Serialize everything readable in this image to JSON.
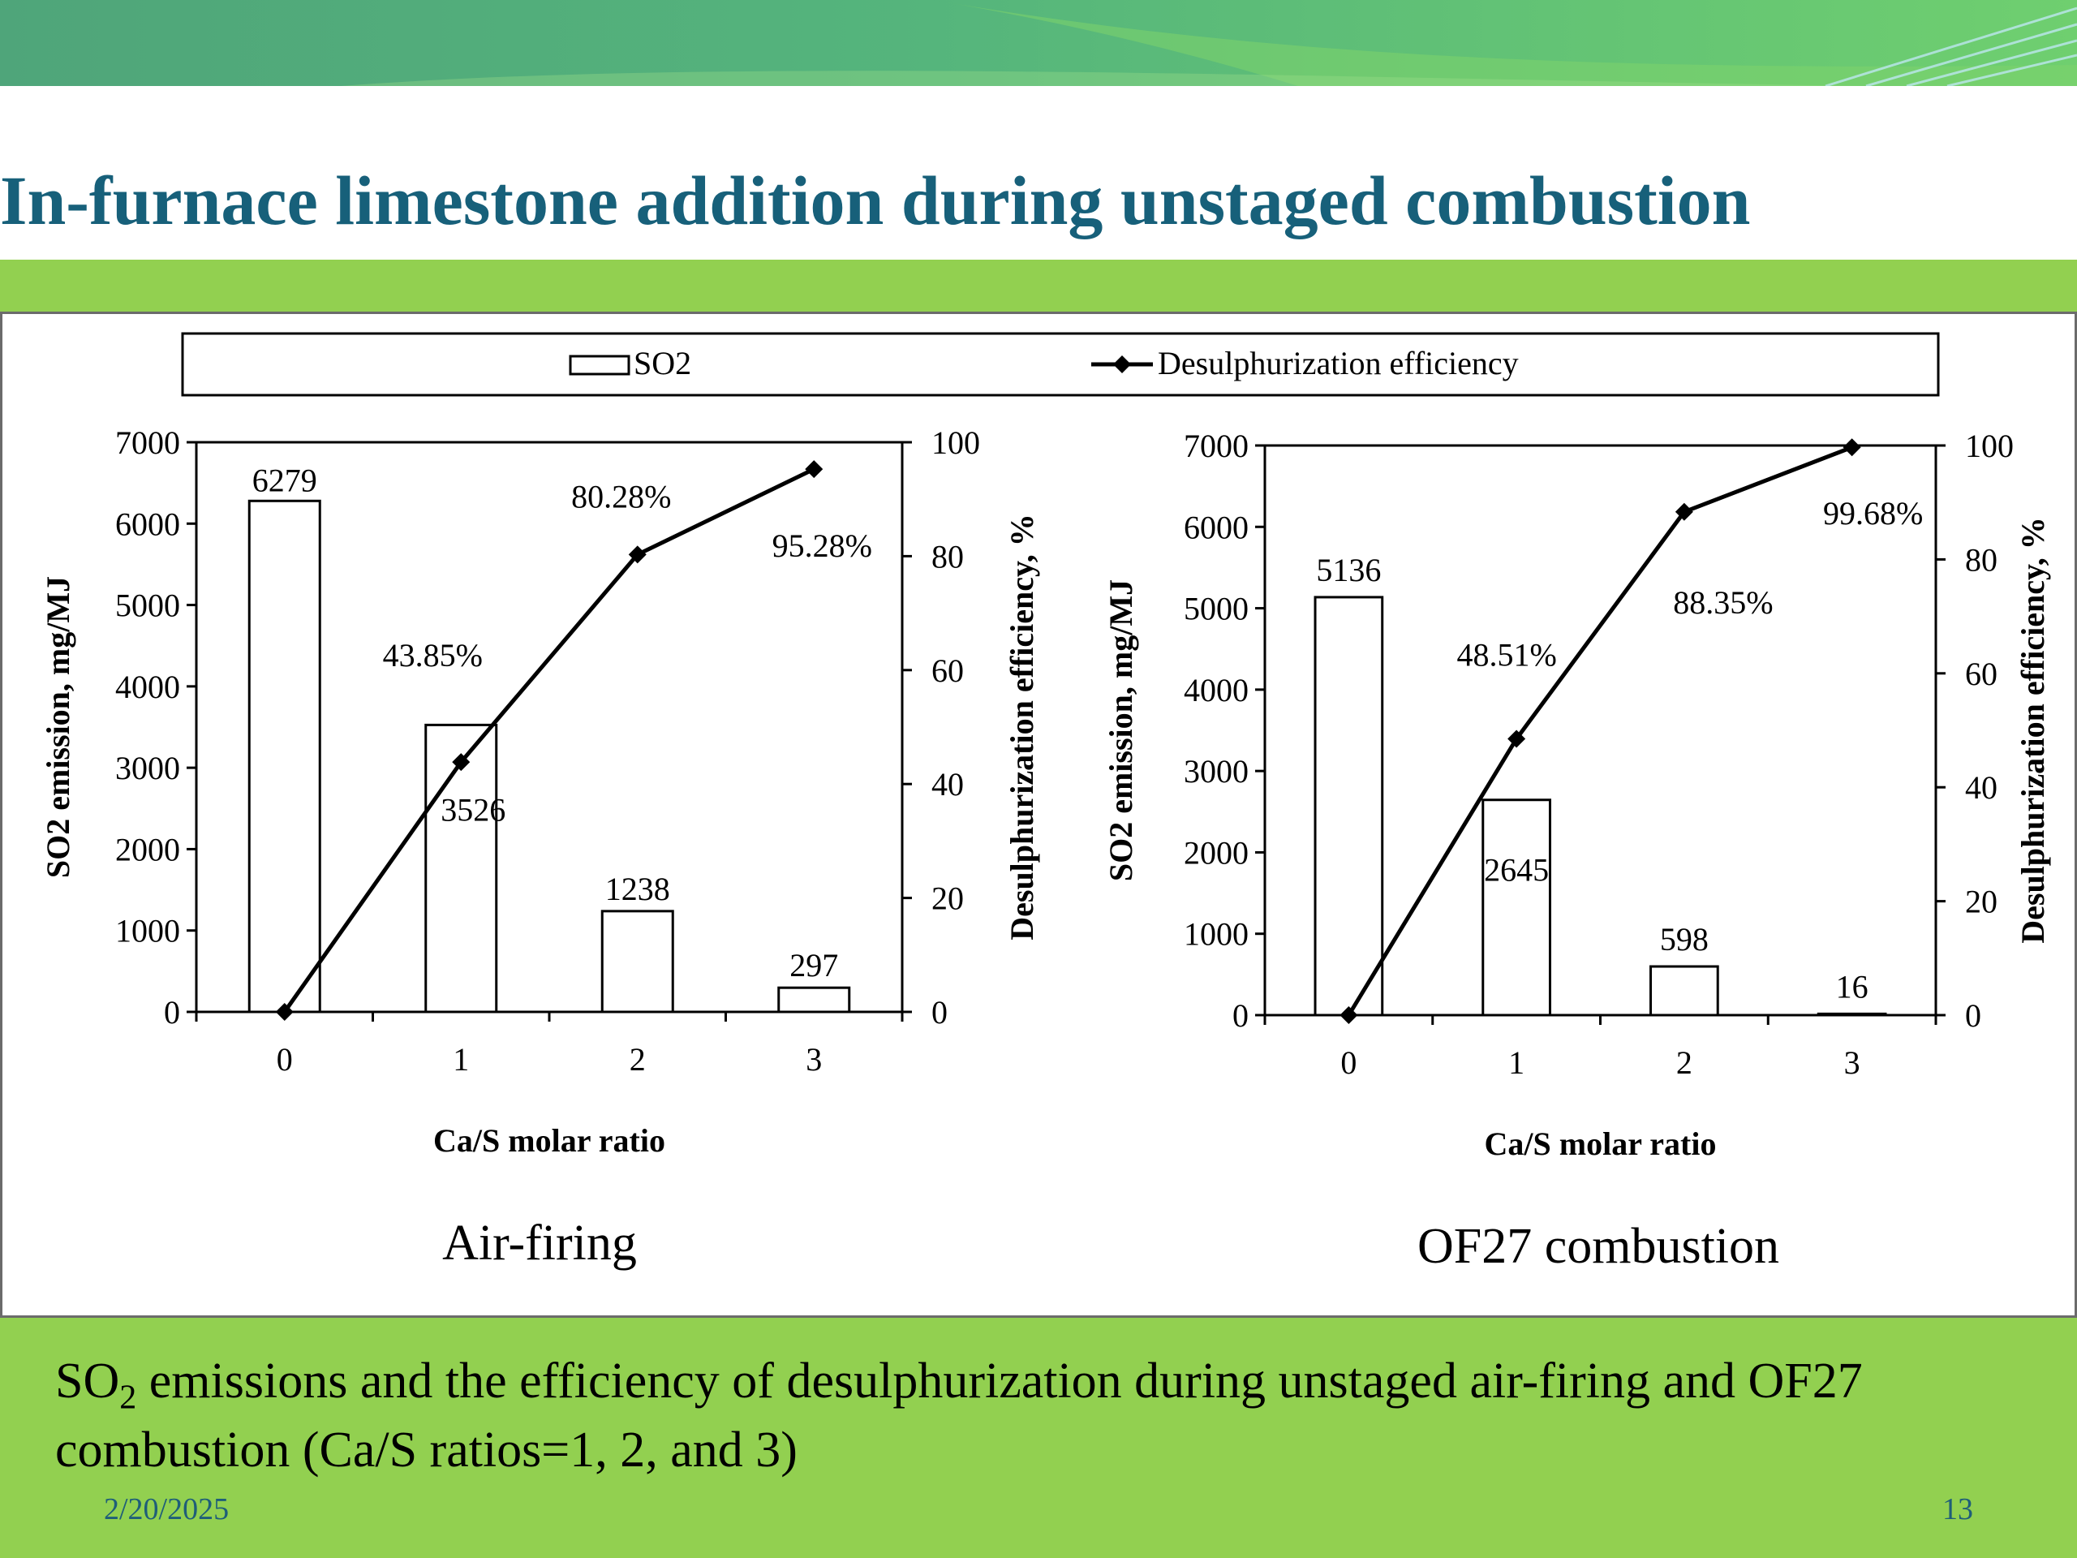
{
  "slide": {
    "title": "In-furnace limestone addition during unstaged combustion",
    "caption": {
      "pre": "SO",
      "sub": "2",
      "post": " emissions and the efficiency of desulphurization during unstaged air-firing and OF27 combustion (Ca/S ratios=1, 2, and 3)"
    },
    "footer_date": "2/20/2025",
    "page_number": "13"
  },
  "legend": {
    "entries": [
      "SO2",
      "Desulphurization efficiency"
    ],
    "placement": "top",
    "bar_fill": "#ffffff",
    "line_color": "#000000"
  },
  "colors": {
    "title": "#17607a",
    "band": "#92d050",
    "footer_text": "#1f5e78"
  },
  "chart_data": [
    {
      "type": "bar",
      "subtitle": "Air-firing",
      "categories": [
        "0",
        "1",
        "2",
        "3"
      ],
      "xlabel": "Ca/S molar ratio",
      "ylabel": "SO2 emission,  mg/MJ",
      "y2label": "Desulphurization efficiency,  %",
      "ylim": [
        0,
        7000
      ],
      "y2lim": [
        0,
        100
      ],
      "yticks": [
        "0",
        "1000",
        "2000",
        "3000",
        "4000",
        "5000",
        "6000",
        "7000"
      ],
      "y2ticks": [
        "0",
        "20",
        "40",
        "60",
        "80",
        "100"
      ],
      "series": [
        {
          "name": "SO2",
          "kind": "bar",
          "values": [
            6279,
            3526,
            1238,
            297
          ],
          "labels": [
            "6279",
            "3526",
            "1238",
            "297"
          ]
        },
        {
          "name": "Desulphurization efficiency",
          "kind": "line",
          "axis": "right",
          "values": [
            0,
            43.85,
            80.28,
            95.28
          ],
          "labels": [
            "",
            "43.85%",
            "80.28%",
            "95.28%"
          ]
        }
      ]
    },
    {
      "type": "bar",
      "subtitle": "OF27 combustion",
      "categories": [
        "0",
        "1",
        "2",
        "3"
      ],
      "xlabel": "Ca/S molar ratio",
      "ylabel": "SO2 emission,  mg/MJ",
      "y2label": "Desulphurization efficiency,  %",
      "ylim": [
        0,
        7000
      ],
      "y2lim": [
        0,
        100
      ],
      "yticks": [
        "0",
        "1000",
        "2000",
        "3000",
        "4000",
        "5000",
        "6000",
        "7000"
      ],
      "y2ticks": [
        "0",
        "20",
        "40",
        "60",
        "80",
        "100"
      ],
      "series": [
        {
          "name": "SO2",
          "kind": "bar",
          "values": [
            5136,
            2645,
            598,
            16
          ],
          "labels": [
            "5136",
            "2645",
            "598",
            "16"
          ]
        },
        {
          "name": "Desulphurization efficiency",
          "kind": "line",
          "axis": "right",
          "values": [
            0,
            48.51,
            88.35,
            99.68
          ],
          "labels": [
            "",
            "48.51%",
            "88.35%",
            "99.68%"
          ]
        }
      ]
    }
  ]
}
